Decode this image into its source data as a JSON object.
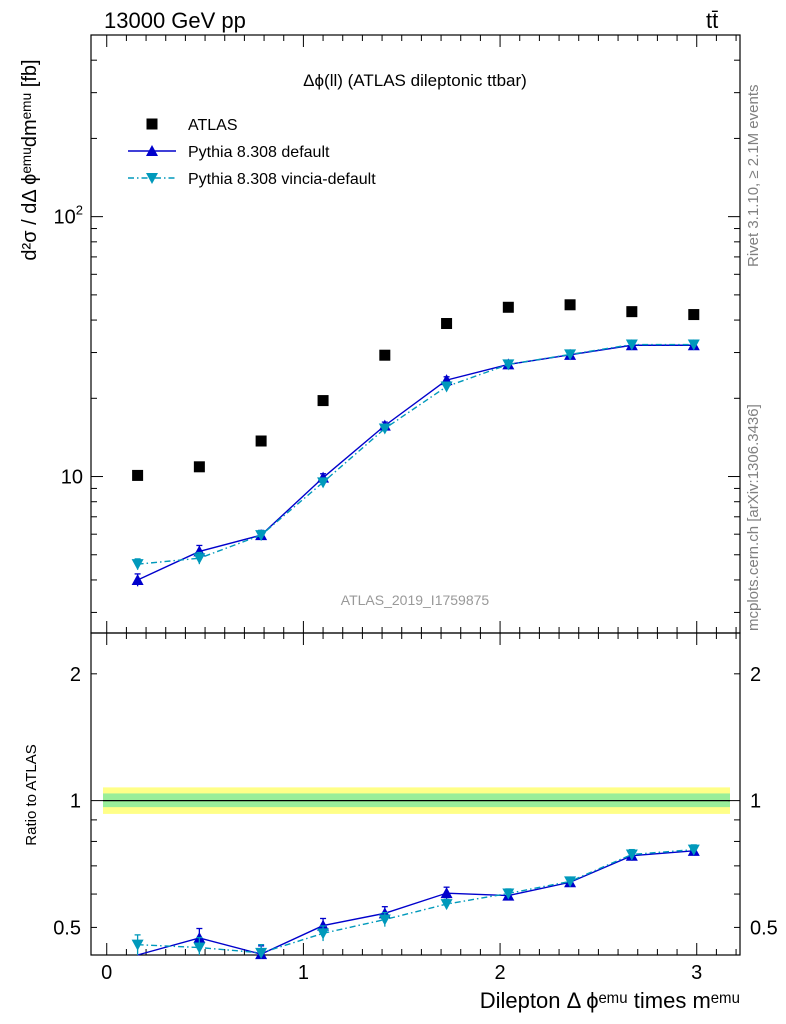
{
  "header": {
    "energy": "13000 GeV pp",
    "process": "tt̄"
  },
  "side": {
    "rivet": "Rivet 3.1.10, ≥ 2.1M events",
    "source": "mcplots.cern.ch [arXiv:1306.3436]"
  },
  "chart_data": [
    {
      "type": "scatter",
      "title": "Δϕ(ll) (ATLAS dileptonic ttbar)",
      "watermark": "ATLAS_2019_I1759875",
      "ylabel": "d²σ / dΔ ϕᵉᵐᵘdmᵉᵐᵘ [fb]",
      "yscale": "log",
      "xlim": [
        -0.08,
        3.22
      ],
      "ylim": [
        2.5,
        500
      ],
      "yticks_labeled": [
        {
          "v": 10,
          "label": "10"
        },
        {
          "v": 100,
          "label": "10²"
        }
      ],
      "legend_position": "top-left",
      "series": [
        {
          "name": "ATLAS",
          "color": "#000000",
          "marker": "square",
          "x": [
            0.157,
            0.471,
            0.785,
            1.1,
            1.414,
            1.728,
            2.042,
            2.356,
            2.67,
            2.985
          ],
          "y": [
            10.1,
            10.9,
            13.7,
            19.6,
            29.3,
            38.8,
            44.8,
            45.8,
            43.1,
            42.0
          ]
        },
        {
          "name": "Pythia 8.308 default",
          "color": "#0000cc",
          "marker": "triangle-up",
          "line": "solid",
          "x": [
            0.157,
            0.471,
            0.785,
            1.1,
            1.414,
            1.728,
            2.042,
            2.356,
            2.67,
            2.985
          ],
          "y": [
            4.0,
            5.15,
            5.95,
            9.9,
            15.7,
            23.5,
            27.0,
            29.4,
            32.0,
            32.0
          ],
          "err": [
            0.22,
            0.28,
            0.25,
            0.35,
            0.5,
            0.7,
            0.6,
            0.6,
            0.7,
            0.7
          ]
        },
        {
          "name": "Pythia 8.308 vincia-default",
          "color": "#0099bb",
          "marker": "triangle-down",
          "line": "dashdot",
          "x": [
            0.157,
            0.471,
            0.785,
            1.1,
            1.414,
            1.728,
            2.042,
            2.356,
            2.67,
            2.985
          ],
          "y": [
            4.6,
            4.85,
            5.95,
            9.5,
            15.3,
            22.2,
            27.0,
            29.5,
            32.2,
            32.2
          ],
          "err": [
            0.22,
            0.25,
            0.25,
            0.35,
            0.5,
            0.6,
            0.6,
            0.6,
            0.7,
            0.7
          ]
        }
      ]
    },
    {
      "type": "scatter",
      "ylabel": "Ratio to ATLAS",
      "xlabel": "Dilepton Δ ϕᵉᵐᵘ times mᵉᵐᵘ",
      "yscale": "log",
      "xlim": [
        -0.08,
        3.22
      ],
      "ylim": [
        0.43,
        2.5
      ],
      "xticks": [
        0,
        1,
        2,
        3
      ],
      "yticks_labeled": [
        {
          "v": 0.5,
          "label": "0.5"
        },
        {
          "v": 1,
          "label": "1"
        },
        {
          "v": 2,
          "label": "2"
        }
      ],
      "reference_line": 1,
      "bands": [
        {
          "name": "outer",
          "color": "#ffff88",
          "lo": 0.93,
          "hi": 1.075
        },
        {
          "name": "inner",
          "color": "#99ee99",
          "lo": 0.965,
          "hi": 1.04
        }
      ],
      "series": [
        {
          "name": "Pythia 8.308 default",
          "color": "#0000cc",
          "marker": "triangle-up",
          "line": "solid",
          "x": [
            0.157,
            0.471,
            0.785,
            1.1,
            1.414,
            1.728,
            2.042,
            2.356,
            2.67,
            2.985
          ],
          "y": [
            0.395,
            0.472,
            0.432,
            0.505,
            0.54,
            0.603,
            0.595,
            0.64,
            0.74,
            0.76
          ],
          "err": [
            0.02,
            0.025,
            0.02,
            0.02,
            0.02,
            0.02,
            0.015,
            0.015,
            0.02,
            0.02
          ]
        },
        {
          "name": "Pythia 8.308 vincia-default",
          "color": "#0099bb",
          "marker": "triangle-down",
          "line": "dashdot",
          "x": [
            0.157,
            0.471,
            0.785,
            1.1,
            1.414,
            1.728,
            2.042,
            2.356,
            2.67,
            2.985
          ],
          "y": [
            0.455,
            0.448,
            0.435,
            0.484,
            0.522,
            0.568,
            0.602,
            0.643,
            0.745,
            0.765
          ],
          "err": [
            0.025,
            0.025,
            0.02,
            0.02,
            0.02,
            0.015,
            0.015,
            0.015,
            0.02,
            0.02
          ]
        }
      ]
    }
  ]
}
